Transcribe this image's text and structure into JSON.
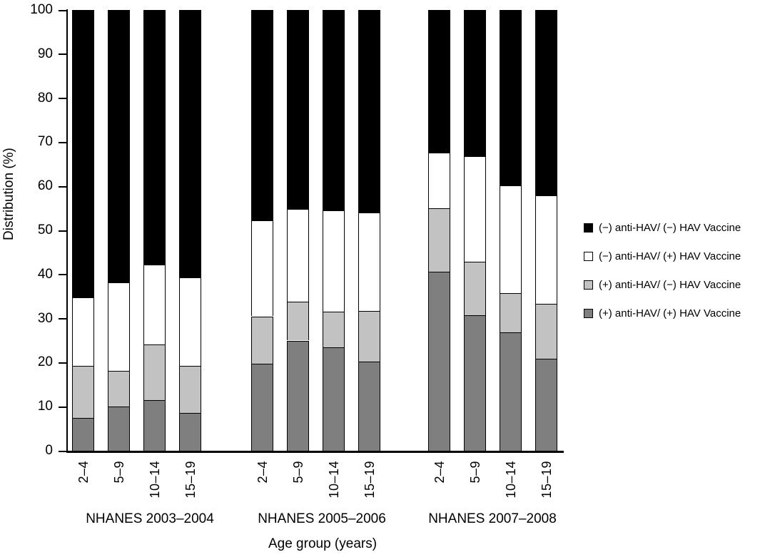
{
  "chart_data": {
    "type": "bar",
    "stacked": true,
    "title": "",
    "xlabel": "Age group (years)",
    "ylabel": "Distribution (%)",
    "ylim": [
      0,
      100
    ],
    "yticks": [
      0,
      10,
      20,
      30,
      40,
      50,
      60,
      70,
      80,
      90,
      100
    ],
    "grid": false,
    "legend_position": "right",
    "legend": [
      {
        "label": "(−) anti-HAV/ (−) HAV Vaccine",
        "color": "#000000"
      },
      {
        "label": "(−) anti-HAV/ (+) HAV Vaccine",
        "color": "#ffffff"
      },
      {
        "label": "(+) anti-HAV/ (−) HAV Vaccine",
        "color": "#c2c2c2"
      },
      {
        "label": "(+) anti-HAV/ (+) HAV Vaccine",
        "color": "#7f7f7f"
      }
    ],
    "stack_bottom_to_top": [
      {
        "name": "(+) anti-HAV/ (+) HAV Vaccine",
        "color": "#7f7f7f"
      },
      {
        "name": "(+) anti-HAV/ (−) HAV Vaccine",
        "color": "#c2c2c2"
      },
      {
        "name": "(−) anti-HAV/ (+) HAV Vaccine",
        "color": "#ffffff"
      },
      {
        "name": "(−) anti-HAV/ (−) HAV Vaccine",
        "color": "#000000"
      }
    ],
    "groups": [
      {
        "label": "NHANES 2003–2004",
        "bars": [
          {
            "category": "2–4",
            "values_bottom_to_top": [
              7.5,
              11.7,
              15.6,
              65.2
            ]
          },
          {
            "category": "5–9",
            "values_bottom_to_top": [
              10.0,
              8.2,
              20.0,
              61.8
            ]
          },
          {
            "category": "10–14",
            "values_bottom_to_top": [
              11.5,
              12.6,
              18.2,
              57.7
            ]
          },
          {
            "category": "15–19",
            "values_bottom_to_top": [
              8.6,
              10.7,
              20.1,
              60.6
            ]
          }
        ]
      },
      {
        "label": "NHANES 2005–2006",
        "bars": [
          {
            "category": "2–4",
            "values_bottom_to_top": [
              19.8,
              10.7,
              21.7,
              47.8
            ]
          },
          {
            "category": "5–9",
            "values_bottom_to_top": [
              25.0,
              8.8,
              21.1,
              45.1
            ]
          },
          {
            "category": "10–14",
            "values_bottom_to_top": [
              23.4,
              8.1,
              23.0,
              45.5
            ]
          },
          {
            "category": "15–19",
            "values_bottom_to_top": [
              20.3,
              11.4,
              22.3,
              46.0
            ]
          }
        ]
      },
      {
        "label": "NHANES 2007–2008",
        "bars": [
          {
            "category": "2–4",
            "values_bottom_to_top": [
              40.6,
              14.4,
              12.6,
              32.4
            ]
          },
          {
            "category": "5–9",
            "values_bottom_to_top": [
              30.8,
              12.1,
              24.0,
              33.1
            ]
          },
          {
            "category": "10–14",
            "values_bottom_to_top": [
              26.9,
              8.9,
              24.4,
              39.8
            ]
          },
          {
            "category": "15–19",
            "values_bottom_to_top": [
              20.9,
              12.4,
              24.6,
              42.1
            ]
          }
        ]
      }
    ]
  }
}
